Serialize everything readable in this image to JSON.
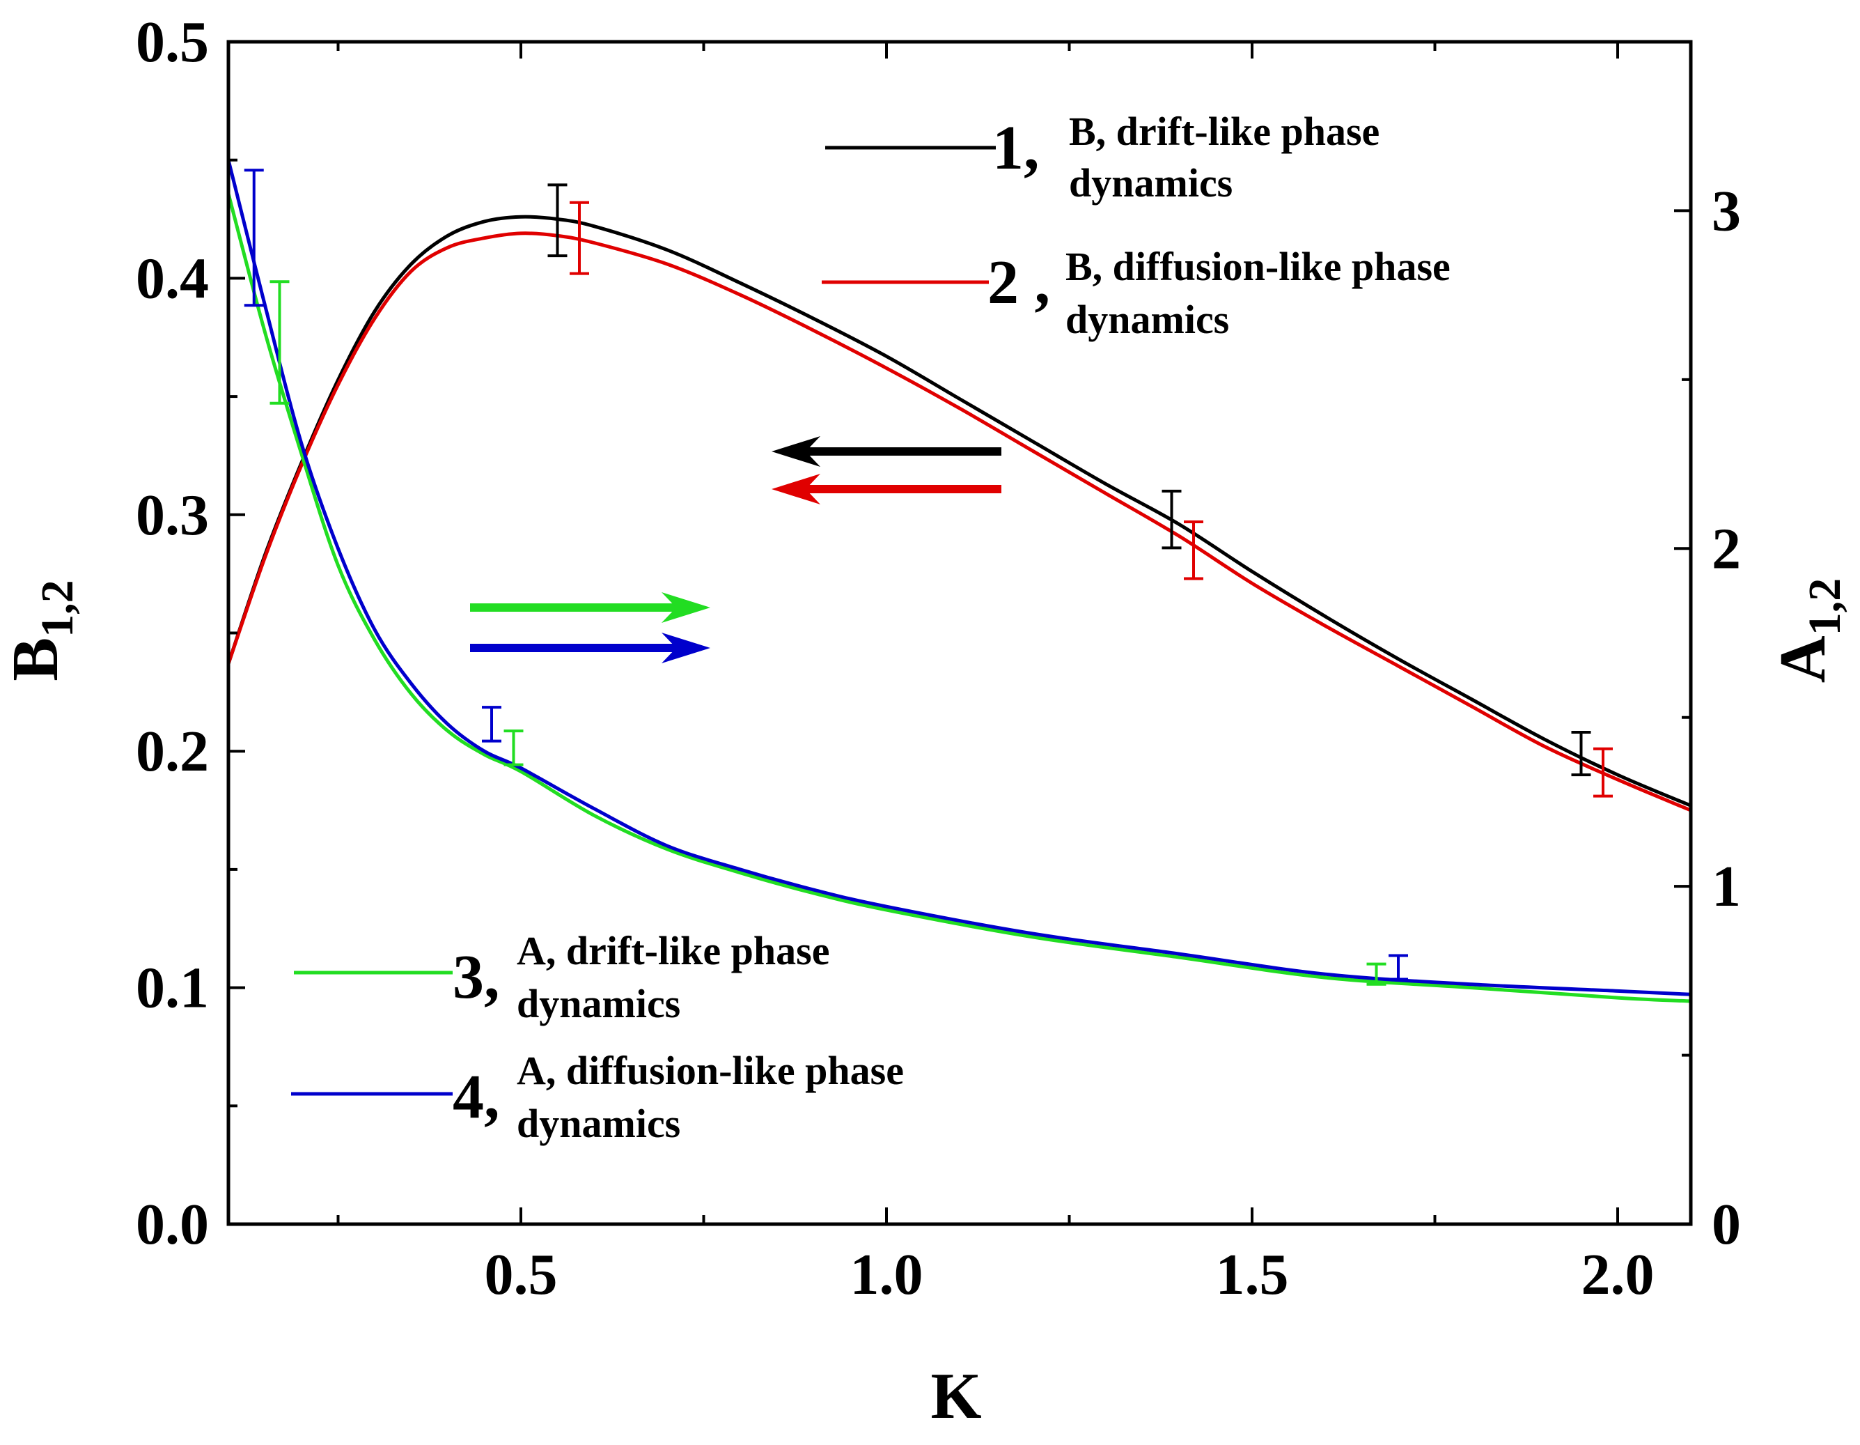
{
  "chart_data": {
    "type": "line",
    "title": "",
    "xlabel": "K",
    "ylabel_left": {
      "main": "B",
      "sub": "1,2"
    },
    "ylabel_right": {
      "main": "A",
      "sub": "1,2"
    },
    "xlim": [
      0.1,
      2.1
    ],
    "ylim_left": [
      0,
      0.5
    ],
    "ylim_right": [
      0,
      3.5
    ],
    "x_ticks": [
      "0.5",
      "1.0",
      "1.5",
      "2.0"
    ],
    "y_left_ticks": [
      "0.0",
      "0.1",
      "0.2",
      "0.3",
      "0.4",
      "0.5"
    ],
    "y_right_ticks": [
      "0",
      "1",
      "2",
      "3"
    ],
    "series": [
      {
        "name": "B, drift-like phase dynamics",
        "number": "1,",
        "text_line1": "B, drift-like phase",
        "text_line2": "dynamics",
        "axis": "left",
        "color": "#000000",
        "x": [
          0.1,
          0.15,
          0.2,
          0.25,
          0.3,
          0.35,
          0.4,
          0.45,
          0.5,
          0.55,
          0.6,
          0.7,
          0.8,
          0.9,
          1.0,
          1.1,
          1.2,
          1.3,
          1.4,
          1.5,
          1.6,
          1.7,
          1.8,
          1.9,
          2.0,
          2.1
        ],
        "values": [
          0.237,
          0.283,
          0.322,
          0.357,
          0.386,
          0.406,
          0.418,
          0.424,
          0.426,
          0.425,
          0.422,
          0.412,
          0.398,
          0.383,
          0.367,
          0.349,
          0.331,
          0.313,
          0.296,
          0.276,
          0.257,
          0.239,
          0.222,
          0.205,
          0.19,
          0.177
        ],
        "error_bars": [
          {
            "x": 0.55,
            "y": 0.4245,
            "err": 0.015
          },
          {
            "x": 1.39,
            "y": 0.298,
            "err": 0.012
          },
          {
            "x": 1.95,
            "y": 0.199,
            "err": 0.009
          }
        ]
      },
      {
        "name": "B, diffusion-like phase dynamics",
        "number": "2 ,",
        "text_line1": "B, diffusion-like phase",
        "text_line2": "dynamics",
        "axis": "left",
        "color": "#e00000",
        "x": [
          0.1,
          0.15,
          0.2,
          0.25,
          0.3,
          0.35,
          0.4,
          0.45,
          0.5,
          0.55,
          0.6,
          0.7,
          0.8,
          0.9,
          1.0,
          1.1,
          1.2,
          1.3,
          1.4,
          1.5,
          1.6,
          1.7,
          1.8,
          1.9,
          2.0,
          2.1
        ],
        "values": [
          0.237,
          0.282,
          0.321,
          0.355,
          0.383,
          0.403,
          0.413,
          0.417,
          0.419,
          0.418,
          0.415,
          0.406,
          0.393,
          0.378,
          0.362,
          0.345,
          0.327,
          0.309,
          0.291,
          0.271,
          0.253,
          0.236,
          0.219,
          0.202,
          0.188,
          0.175
        ],
        "error_bars": [
          {
            "x": 0.58,
            "y": 0.417,
            "err": 0.015
          },
          {
            "x": 1.42,
            "y": 0.285,
            "err": 0.012
          },
          {
            "x": 1.98,
            "y": 0.191,
            "err": 0.01
          }
        ]
      },
      {
        "name": "A, drift-like phase dynamics",
        "number": "3,",
        "text_line1": "A, drift-like phase",
        "text_line2": "dynamics",
        "axis": "right",
        "color": "#22dd22",
        "x": [
          0.1,
          0.15,
          0.2,
          0.25,
          0.3,
          0.35,
          0.4,
          0.45,
          0.5,
          0.6,
          0.7,
          0.8,
          0.9,
          1.0,
          1.2,
          1.4,
          1.6,
          1.8,
          2.0,
          2.1
        ],
        "values": [
          3.05,
          2.64,
          2.28,
          1.95,
          1.73,
          1.57,
          1.46,
          1.39,
          1.34,
          1.21,
          1.11,
          1.04,
          0.98,
          0.93,
          0.85,
          0.79,
          0.73,
          0.7,
          0.67,
          0.66
        ],
        "error_bars": [
          {
            "x": 0.17,
            "y": 2.61,
            "err": 0.18
          },
          {
            "x": 0.49,
            "y": 1.41,
            "err": 0.05
          },
          {
            "x": 1.67,
            "y": 0.74,
            "err": 0.03
          }
        ]
      },
      {
        "name": "A, diffusion-like phase dynamics",
        "number": "4,",
        "text_line1": "A, diffusion-like phase",
        "text_line2": "dynamics",
        "axis": "right",
        "color": "#0000cc",
        "x": [
          0.1,
          0.15,
          0.2,
          0.25,
          0.3,
          0.35,
          0.4,
          0.45,
          0.5,
          0.6,
          0.7,
          0.8,
          0.9,
          1.0,
          1.2,
          1.4,
          1.6,
          1.8,
          2.0,
          2.1
        ],
        "values": [
          3.15,
          2.72,
          2.31,
          2.0,
          1.76,
          1.6,
          1.48,
          1.4,
          1.35,
          1.23,
          1.12,
          1.05,
          0.99,
          0.94,
          0.86,
          0.8,
          0.74,
          0.71,
          0.69,
          0.68
        ],
        "error_bars": [
          {
            "x": 0.135,
            "y": 2.92,
            "err": 0.2
          },
          {
            "x": 0.46,
            "y": 1.48,
            "err": 0.05
          },
          {
            "x": 1.7,
            "y": 0.76,
            "err": 0.035
          }
        ]
      }
    ],
    "annotations": [
      {
        "type": "arrow",
        "direction": "left",
        "target_axis": "left",
        "color": "#000000"
      },
      {
        "type": "arrow",
        "direction": "left",
        "target_axis": "left",
        "color": "#e00000"
      },
      {
        "type": "arrow",
        "direction": "right",
        "target_axis": "right",
        "color": "#22dd22"
      },
      {
        "type": "arrow",
        "direction": "right",
        "target_axis": "right",
        "color": "#0000cc"
      }
    ]
  }
}
